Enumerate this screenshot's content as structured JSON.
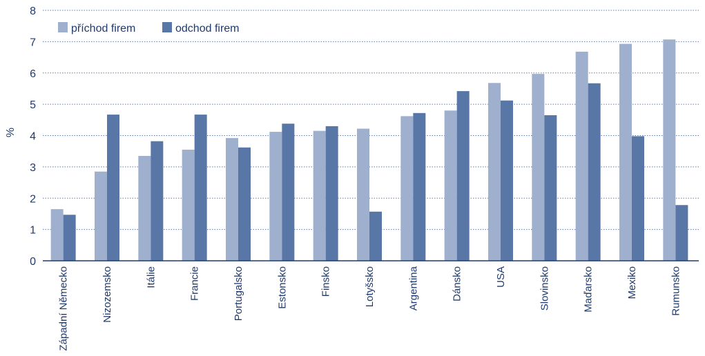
{
  "chart_data": {
    "type": "bar",
    "ylabel": "%",
    "xlabel": "",
    "ylim": [
      0,
      8
    ],
    "yticks": [
      0,
      1,
      2,
      3,
      4,
      5,
      6,
      7,
      8
    ],
    "grid": true,
    "legend_position": "top-left",
    "categories": [
      "Západní Německo",
      "Nizozemsko",
      "Itálie",
      "Francie",
      "Portugalsko",
      "Estonsko",
      "Finsko",
      "Lotyšsko",
      "Argentina",
      "Dánsko",
      "USA",
      "Slovinsko",
      "Maďarsko",
      "Mexiko",
      "Rumunsko"
    ],
    "series": [
      {
        "name": "příchod firem",
        "color": "#9fb0cf",
        "values": [
          1.65,
          2.85,
          3.35,
          3.55,
          3.92,
          4.12,
          4.15,
          4.22,
          4.62,
          4.8,
          5.68,
          5.97,
          6.68,
          6.93,
          7.07
        ]
      },
      {
        "name": "odchod firem",
        "color": "#5877a7",
        "values": [
          1.47,
          4.67,
          3.82,
          4.67,
          3.62,
          4.38,
          4.3,
          1.57,
          4.72,
          5.42,
          5.12,
          4.65,
          5.67,
          3.98,
          1.78
        ]
      }
    ]
  }
}
